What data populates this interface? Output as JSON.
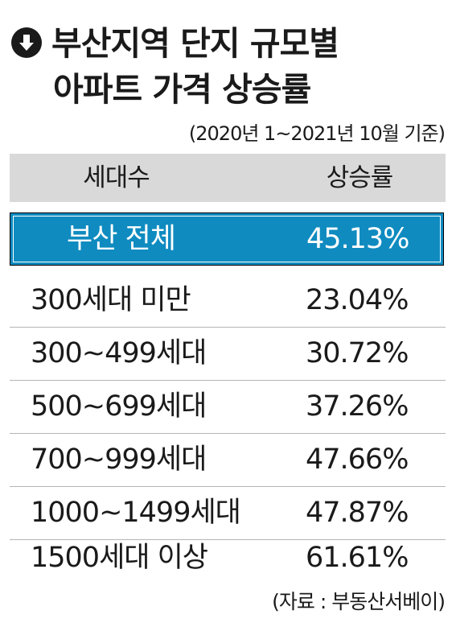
{
  "title": {
    "line1": "부산지역 단지 규모별",
    "line2": "아파트 가격 상승률",
    "icon": "down-arrow-circle-icon"
  },
  "subtitle": "(2020년 1~2021년 10월 기준)",
  "source": "(자료 : 부동산서베이)",
  "colors": {
    "highlight": "#0f8bc0",
    "header_bg": "#d9d9d9",
    "text": "#1a1a1a"
  },
  "chart_data": {
    "type": "table",
    "columns": [
      "세대수",
      "상승률"
    ],
    "highlight": {
      "label": "부산 전체",
      "display": "45.13%",
      "value": 45.13
    },
    "rows": [
      {
        "label": "300세대 미만",
        "display": "23.04%",
        "value": 23.04
      },
      {
        "label": "300~499세대",
        "display": "30.72%",
        "value": 30.72
      },
      {
        "label": "500~699세대",
        "display": "37.26%",
        "value": 37.26
      },
      {
        "label": "700~999세대",
        "display": "47.66%",
        "value": 47.66
      },
      {
        "label": "1000~1499세대",
        "display": "47.87%",
        "value": 47.87
      },
      {
        "label": "1500세대 이상",
        "display": "61.61%",
        "value": 61.61
      }
    ]
  }
}
